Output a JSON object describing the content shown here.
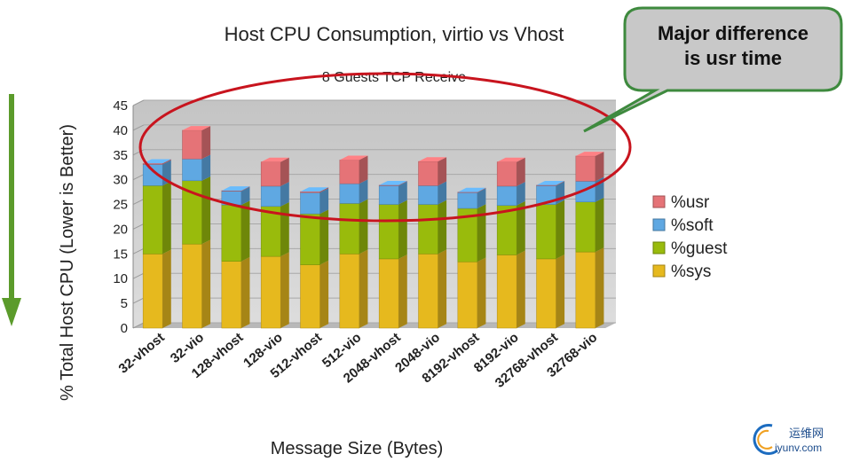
{
  "chart_data": {
    "type": "bar",
    "stacked": true,
    "title": "Host CPU Consumption, virtio vs Vhost",
    "subtitle": "8 Guests TCP Receive",
    "xlabel": "Message Size (Bytes)",
    "ylabel": "% Total Host CPU (Lower is Better)",
    "ylim": [
      0,
      45
    ],
    "yticks": [
      0,
      5,
      10,
      15,
      20,
      25,
      30,
      35,
      40,
      45
    ],
    "grid": true,
    "legend_position": "right",
    "categories": [
      "32-vhost",
      "32-vio",
      "128-vhost",
      "128-vio",
      "512-vhost",
      "512-vio",
      "2048-vhost",
      "2048-vio",
      "8192-vhost",
      "8192-vio",
      "32768-vhost",
      "32768-vio"
    ],
    "series": [
      {
        "name": "%sys",
        "color": "#e6b91e",
        "values": [
          15.0,
          17.0,
          13.5,
          14.5,
          12.8,
          15.0,
          14.0,
          15.0,
          13.4,
          14.8,
          14.0,
          15.4
        ]
      },
      {
        "name": "%guest",
        "color": "#99bb0c",
        "values": [
          13.8,
          12.8,
          11.4,
          10.1,
          10.3,
          10.2,
          11.0,
          10.0,
          10.8,
          10.0,
          11.0,
          10.1
        ]
      },
      {
        "name": "%soft",
        "color": "#5fa8e2",
        "values": [
          4.3,
          4.4,
          2.8,
          4.1,
          4.3,
          4.0,
          3.8,
          3.8,
          3.2,
          3.9,
          3.8,
          4.2
        ]
      },
      {
        "name": "%usr",
        "color": "#e57377",
        "values": [
          0.2,
          5.8,
          0.1,
          4.9,
          0.2,
          4.8,
          0.1,
          4.9,
          0.1,
          4.9,
          0.1,
          5.1
        ]
      }
    ],
    "legend_order": [
      "%usr",
      "%soft",
      "%guest",
      "%sys"
    ]
  },
  "annotation": {
    "text_line1": "Major difference",
    "text_line2": "is usr time",
    "highlight_color": "#c8141e",
    "callout_fill": "#c8c8c8",
    "callout_border": "#3e8a3e"
  },
  "arrow": {
    "color": "#5b9b2b",
    "meaning": "lower is better"
  },
  "watermark": {
    "text_cn": "运维网",
    "text_url": "iyunv.com"
  }
}
